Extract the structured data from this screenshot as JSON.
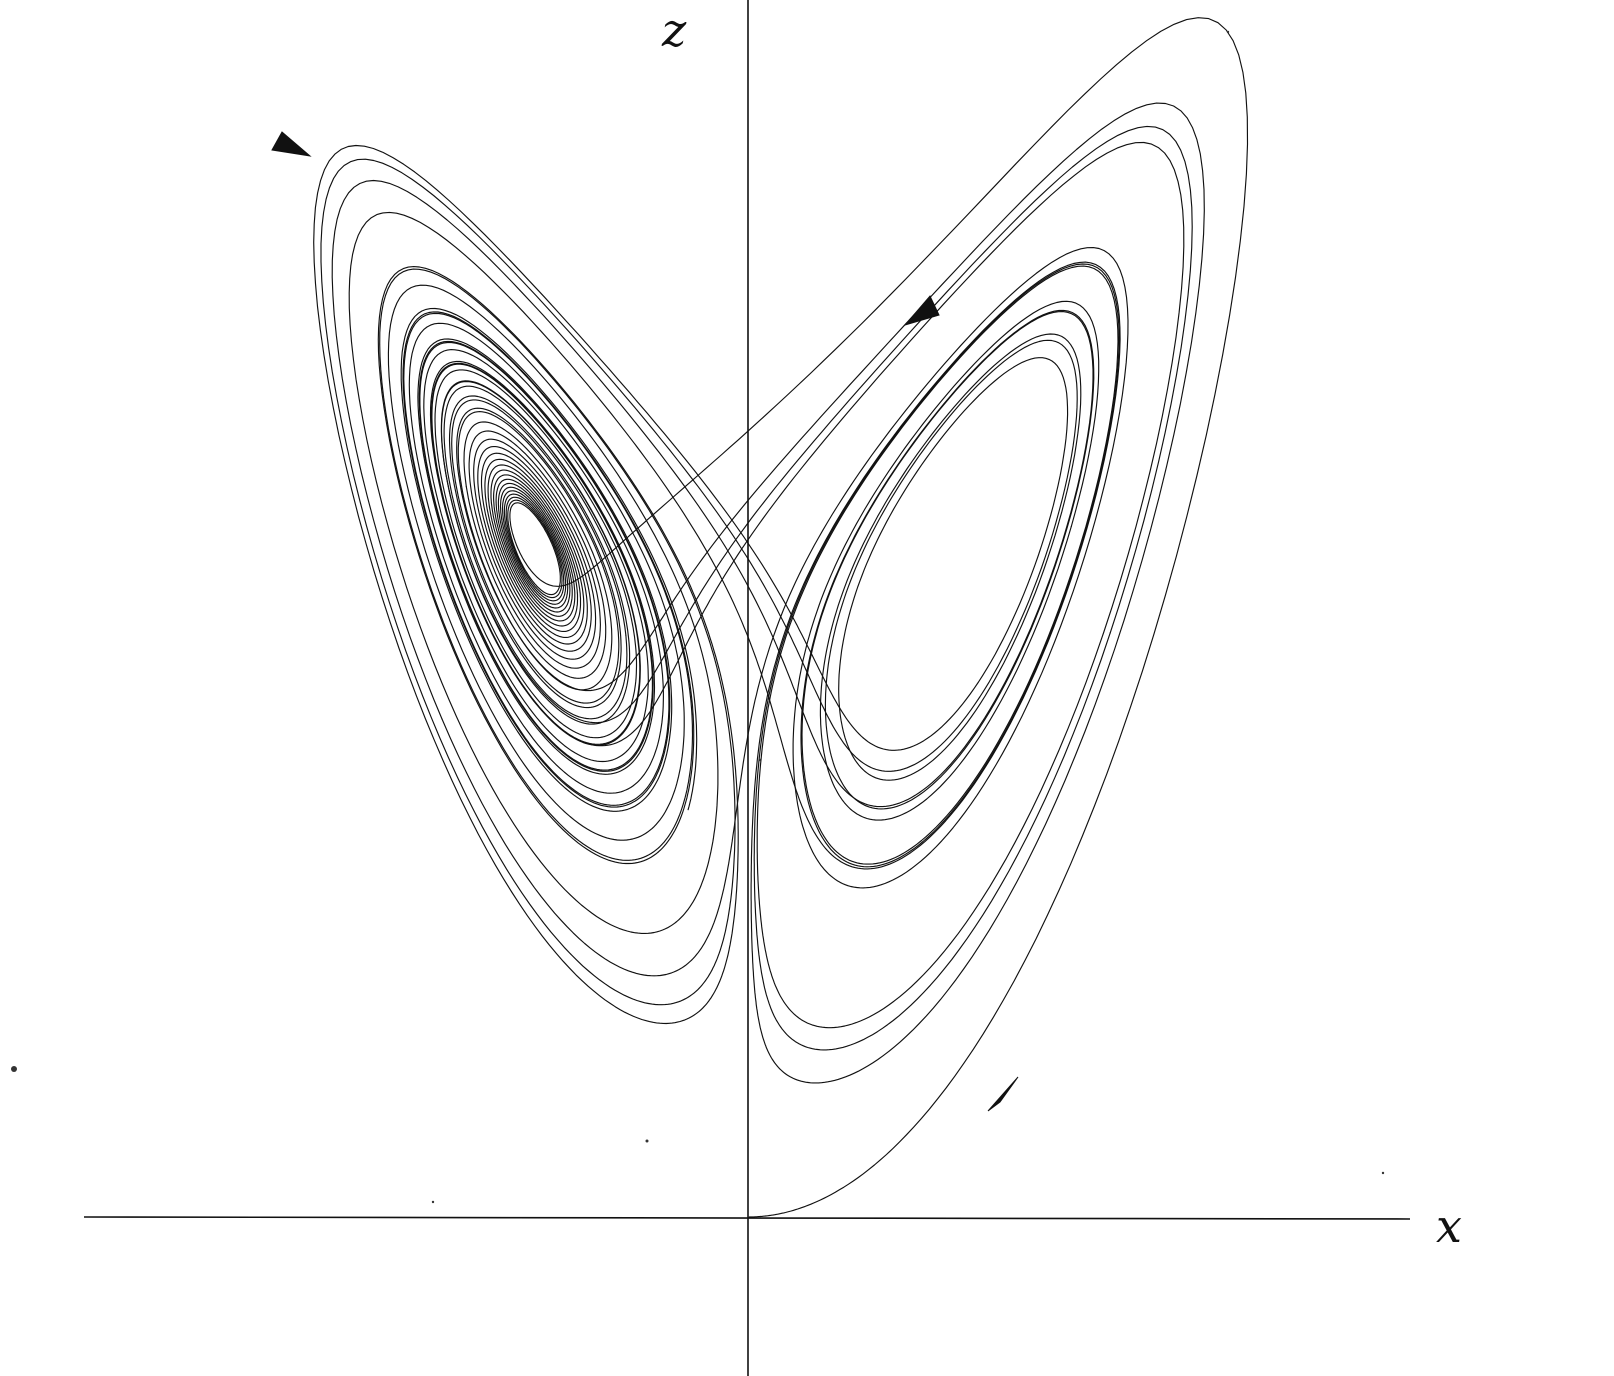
{
  "axes": {
    "x_label": "x",
    "z_label": "z"
  },
  "colors": {
    "stroke": "#111111",
    "background": "#ffffff"
  }
}
